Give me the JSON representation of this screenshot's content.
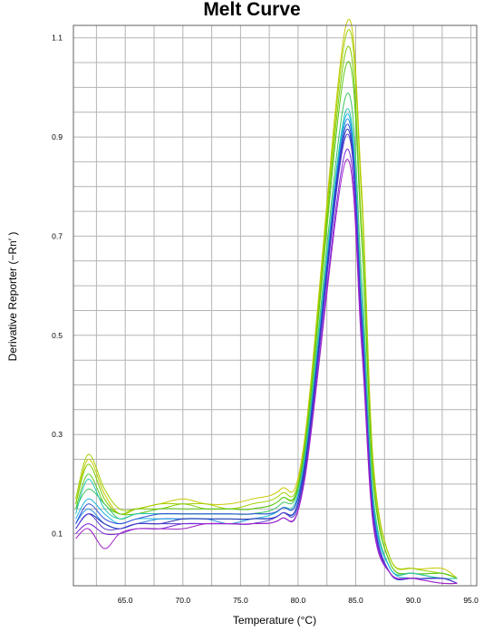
{
  "chart_data": {
    "type": "line",
    "title": "Melt Curve",
    "xlabel": "Temperature (°C)",
    "ylabel": "Derivative Reporter (−Rn′ )",
    "xlim": [
      60.5,
      95.5
    ],
    "ylim": [
      -0.005,
      1.125
    ],
    "x_ticks": [
      65.0,
      70.0,
      75.0,
      80.0,
      85.0,
      90.0,
      95.0
    ],
    "x_tick_labels": [
      "65.0",
      "70.0",
      "75.0",
      "80.0",
      "85.0",
      "90.0",
      "95.0"
    ],
    "y_ticks": [
      0.1,
      0.3,
      0.5,
      0.7,
      0.9,
      1.1
    ],
    "y_tick_labels": [
      "0.1",
      "0.3",
      "0.5",
      "0.7",
      "0.9",
      "1.1"
    ],
    "grid": true,
    "legend": "none",
    "series": [
      {
        "color": "#c8c800",
        "values": [
          0.16,
          0.25,
          0.18,
          0.14,
          0.15,
          0.16,
          0.17,
          0.16,
          0.16,
          0.17,
          0.19,
          0.28,
          1.12,
          0.8,
          0.25,
          0.05,
          0.03,
          0.03,
          0.01
        ]
      },
      {
        "color": "#a0d000",
        "values": [
          0.17,
          0.26,
          0.19,
          0.15,
          0.15,
          0.16,
          0.16,
          0.16,
          0.15,
          0.16,
          0.18,
          0.27,
          1.1,
          0.78,
          0.24,
          0.05,
          0.03,
          0.02,
          0.01
        ]
      },
      {
        "color": "#7ccc00",
        "values": [
          0.16,
          0.24,
          0.17,
          0.14,
          0.15,
          0.15,
          0.16,
          0.15,
          0.15,
          0.15,
          0.17,
          0.26,
          1.07,
          0.72,
          0.22,
          0.04,
          0.02,
          0.02,
          0.01
        ]
      },
      {
        "color": "#58c818",
        "values": [
          0.15,
          0.22,
          0.16,
          0.14,
          0.14,
          0.15,
          0.15,
          0.15,
          0.15,
          0.15,
          0.17,
          0.26,
          1.04,
          0.7,
          0.21,
          0.04,
          0.02,
          0.02,
          0.01
        ]
      },
      {
        "color": "#3cc460",
        "values": [
          0.15,
          0.19,
          0.16,
          0.13,
          0.14,
          0.14,
          0.14,
          0.14,
          0.14,
          0.14,
          0.16,
          0.25,
          0.98,
          0.62,
          0.18,
          0.03,
          0.02,
          0.01,
          0.01
        ]
      },
      {
        "color": "#28c4b4",
        "values": [
          0.14,
          0.21,
          0.15,
          0.13,
          0.14,
          0.14,
          0.14,
          0.14,
          0.14,
          0.14,
          0.15,
          0.24,
          0.95,
          0.58,
          0.17,
          0.03,
          0.02,
          0.01,
          0.01
        ]
      },
      {
        "color": "#20b4dc",
        "values": [
          0.13,
          0.17,
          0.14,
          0.12,
          0.13,
          0.13,
          0.13,
          0.13,
          0.13,
          0.13,
          0.15,
          0.23,
          0.94,
          0.56,
          0.16,
          0.03,
          0.01,
          0.01,
          0.0
        ]
      },
      {
        "color": "#2c8ce0",
        "values": [
          0.12,
          0.15,
          0.12,
          0.11,
          0.12,
          0.13,
          0.13,
          0.13,
          0.12,
          0.13,
          0.14,
          0.22,
          0.93,
          0.55,
          0.15,
          0.02,
          0.01,
          0.01,
          0.0
        ]
      },
      {
        "color": "#3050d8",
        "values": [
          0.12,
          0.16,
          0.13,
          0.12,
          0.13,
          0.14,
          0.14,
          0.14,
          0.14,
          0.14,
          0.15,
          0.23,
          0.92,
          0.54,
          0.15,
          0.02,
          0.01,
          0.01,
          0.0
        ]
      },
      {
        "color": "#2830b4",
        "values": [
          0.11,
          0.14,
          0.12,
          0.11,
          0.12,
          0.12,
          0.13,
          0.13,
          0.13,
          0.13,
          0.14,
          0.22,
          0.91,
          0.53,
          0.14,
          0.02,
          0.01,
          0.01,
          0.0
        ]
      },
      {
        "color": "#5438d0",
        "values": [
          0.11,
          0.14,
          0.11,
          0.11,
          0.12,
          0.12,
          0.12,
          0.12,
          0.12,
          0.12,
          0.14,
          0.21,
          0.9,
          0.52,
          0.14,
          0.02,
          0.01,
          0.01,
          0.0
        ]
      },
      {
        "color": "#7c28d8",
        "values": [
          0.1,
          0.12,
          0.1,
          0.1,
          0.11,
          0.11,
          0.12,
          0.12,
          0.12,
          0.12,
          0.13,
          0.2,
          0.87,
          0.5,
          0.13,
          0.02,
          0.01,
          0.0,
          0.0
        ]
      },
      {
        "color": "#a020c8",
        "values": [
          0.09,
          0.11,
          0.07,
          0.1,
          0.11,
          0.11,
          0.11,
          0.12,
          0.12,
          0.12,
          0.13,
          0.2,
          0.85,
          0.48,
          0.12,
          0.02,
          0.01,
          0.0,
          0.0
        ]
      }
    ],
    "x": [
      60.7,
      61.8,
      63.2,
      64.5,
      66.0,
      68.0,
      70.0,
      72.0,
      74.0,
      76.0,
      78.5,
      80.5,
      84.1,
      85.5,
      86.5,
      88.0,
      90.0,
      92.5,
      93.8
    ]
  }
}
